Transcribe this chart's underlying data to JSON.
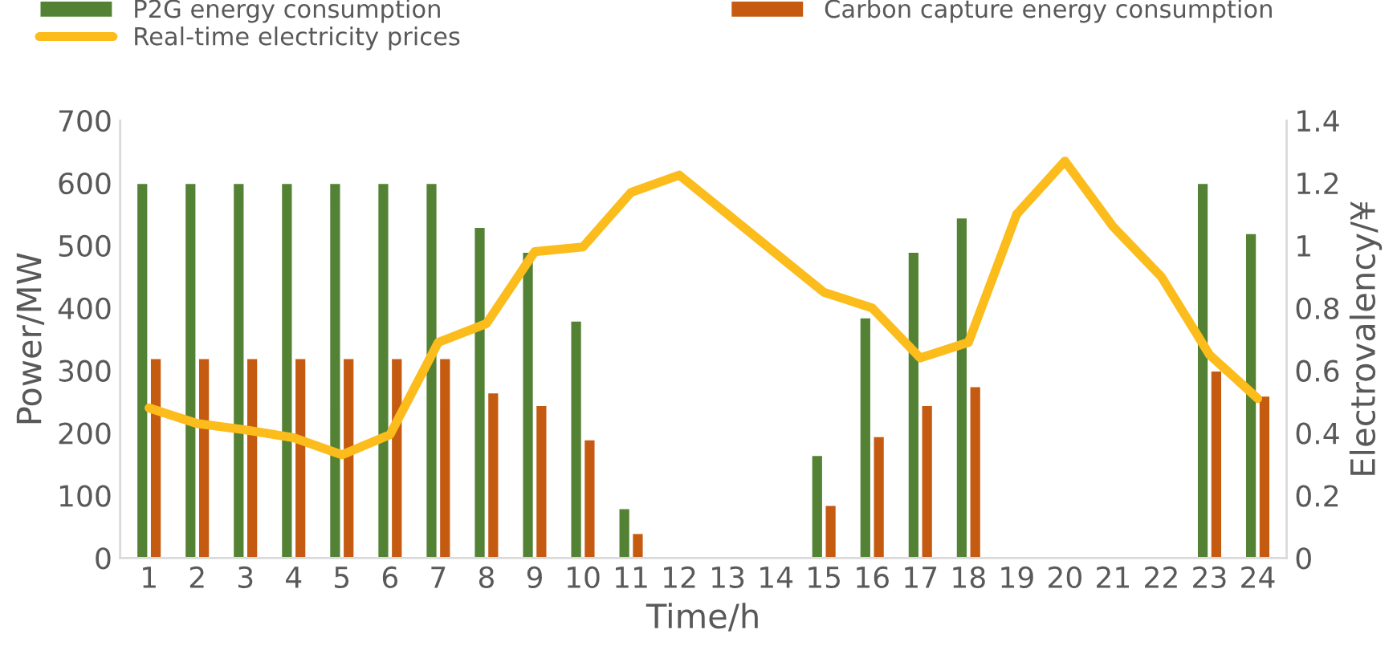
{
  "chart_data": {
    "type": "bar",
    "xlabel": "Time/h",
    "ylabel": "Power/MW",
    "y2label": "Electrovalency/¥",
    "categories": [
      "1",
      "2",
      "3",
      "4",
      "5",
      "6",
      "7",
      "8",
      "9",
      "10",
      "11",
      "12",
      "13",
      "14",
      "15",
      "16",
      "17",
      "18",
      "19",
      "20",
      "21",
      "22",
      "23",
      "24"
    ],
    "series": [
      {
        "name": "P2G energy consumption",
        "color": "#548235",
        "values": [
          600,
          600,
          600,
          600,
          600,
          600,
          600,
          530,
          490,
          380,
          80,
          null,
          null,
          null,
          165,
          385,
          490,
          545,
          null,
          null,
          null,
          null,
          600,
          520
        ]
      },
      {
        "name": "Carbon capture energy consumption",
        "color": "#c55a11",
        "values": [
          320,
          320,
          320,
          320,
          320,
          320,
          320,
          265,
          245,
          190,
          40,
          null,
          null,
          null,
          85,
          195,
          245,
          275,
          null,
          null,
          null,
          null,
          300,
          260
        ]
      },
      {
        "name": "Real-time electricity prices",
        "type": "line",
        "axis": "y2",
        "color": "#fbbc1c",
        "values": [
          0.48,
          0.43,
          0.41,
          0.385,
          0.33,
          0.395,
          0.69,
          0.75,
          0.98,
          0.995,
          1.17,
          1.225,
          1.1,
          0.975,
          0.85,
          0.8,
          0.64,
          0.69,
          1.1,
          1.27,
          1.06,
          0.9,
          0.65,
          0.51
        ]
      }
    ],
    "ylim": [
      0,
      700
    ],
    "yticks": [
      0,
      100,
      200,
      300,
      400,
      500,
      600,
      700
    ],
    "y2lim": [
      0,
      1.4
    ],
    "y2ticks": [
      0,
      0.2,
      0.4,
      0.6,
      0.8,
      1,
      1.2,
      1.4
    ],
    "grid": false,
    "legend": "top",
    "marker": "none",
    "line_style": "solid"
  }
}
